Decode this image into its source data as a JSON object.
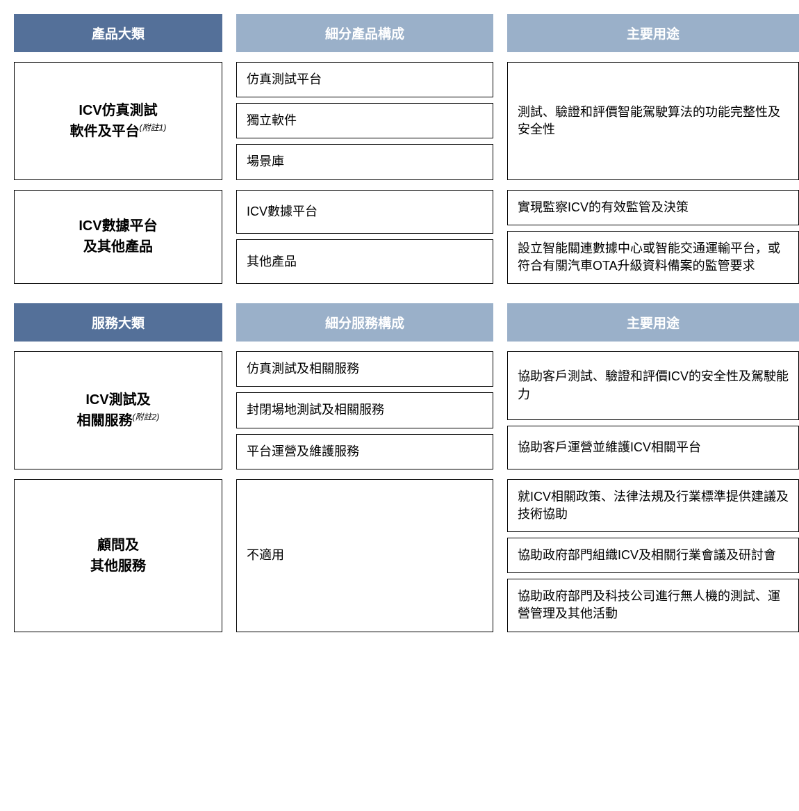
{
  "colors": {
    "header_dark_bg": "#547099",
    "header_light_bg": "#9ab0c9",
    "header_text": "#ffffff",
    "border": "#000000",
    "body_text": "#000000"
  },
  "section1": {
    "headers": {
      "col1": "產品大類",
      "col2": "細分產品構成",
      "col3": "主要用途"
    },
    "row1": {
      "title_line1": "ICV仿真測試",
      "title_line2": "軟件及平台",
      "note": "(附註1)",
      "items": [
        "仿真測試平台",
        "獨立軟件",
        "場景庫"
      ],
      "purpose": "測試、驗證和評價智能駕駛算法的功能完整性及安全性"
    },
    "row2": {
      "title_line1": "ICV數據平台",
      "title_line2": "及其他產品",
      "items": [
        "ICV數據平台",
        "其他產品"
      ],
      "purposes": [
        "實現監察ICV的有效監管及決策",
        "設立智能關連數據中心或智能交通運輸平台，或符合有關汽車OTA升級資料備案的監管要求"
      ]
    }
  },
  "section2": {
    "headers": {
      "col1": "服務大類",
      "col2": "細分服務構成",
      "col3": "主要用途"
    },
    "row1": {
      "title_line1": "ICV測試及",
      "title_line2": "相關服務",
      "note": "(附註2)",
      "items": [
        "仿真測試及相關服務",
        "封閉場地測試及相關服務",
        "平台運營及維護服務"
      ],
      "purposes_top": "協助客戶測試、驗證和評價ICV的安全性及駕駛能力",
      "purposes_bottom": "協助客戶運營並維護ICV相關平台"
    },
    "row2": {
      "title_line1": "顧問及",
      "title_line2": "其他服務",
      "item": "不適用",
      "purposes": [
        "就ICV相關政策、法律法規及行業標準提供建議及技術協助",
        "協助政府部門組織ICV及相關行業會議及研討會",
        "協助政府部門及科技公司進行無人機的測試、運營管理及其他活動"
      ]
    }
  }
}
